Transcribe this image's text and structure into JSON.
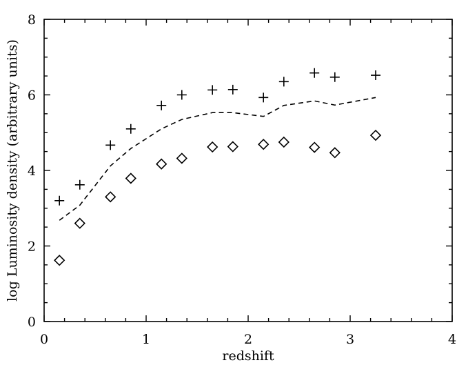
{
  "chart_data": {
    "type": "scatter",
    "xlabel": "redshift",
    "ylabel": "log Luminosity density (arbitrary units)",
    "xlim": [
      0,
      4
    ],
    "ylim": [
      0,
      8
    ],
    "xticks": [
      "0",
      "1",
      "2",
      "3",
      "4"
    ],
    "yticks": [
      "0",
      "2",
      "4",
      "6",
      "8"
    ],
    "grid": false,
    "series": [
      {
        "marker": "plus",
        "x": [
          0.15,
          0.35,
          0.65,
          0.85,
          1.15,
          1.35,
          1.65,
          1.85,
          2.15,
          2.35,
          2.65,
          2.85,
          3.25
        ],
        "y": [
          3.2,
          3.62,
          4.67,
          5.1,
          5.72,
          6.0,
          6.13,
          6.14,
          5.93,
          6.35,
          6.58,
          6.47,
          6.52
        ]
      },
      {
        "marker": "dashed-line",
        "x": [
          0.15,
          0.35,
          0.65,
          0.85,
          1.15,
          1.35,
          1.65,
          1.85,
          2.15,
          2.35,
          2.65,
          2.85,
          3.25
        ],
        "y": [
          2.68,
          3.08,
          4.12,
          4.58,
          5.1,
          5.35,
          5.53,
          5.53,
          5.43,
          5.72,
          5.84,
          5.73,
          5.93
        ]
      },
      {
        "marker": "diamond",
        "x": [
          0.15,
          0.35,
          0.65,
          0.85,
          1.15,
          1.35,
          1.65,
          1.85,
          2.15,
          2.35,
          2.65,
          2.85,
          3.25
        ],
        "y": [
          1.62,
          2.6,
          3.3,
          3.79,
          4.17,
          4.32,
          4.62,
          4.63,
          4.69,
          4.75,
          4.61,
          4.47,
          4.93
        ]
      }
    ]
  }
}
